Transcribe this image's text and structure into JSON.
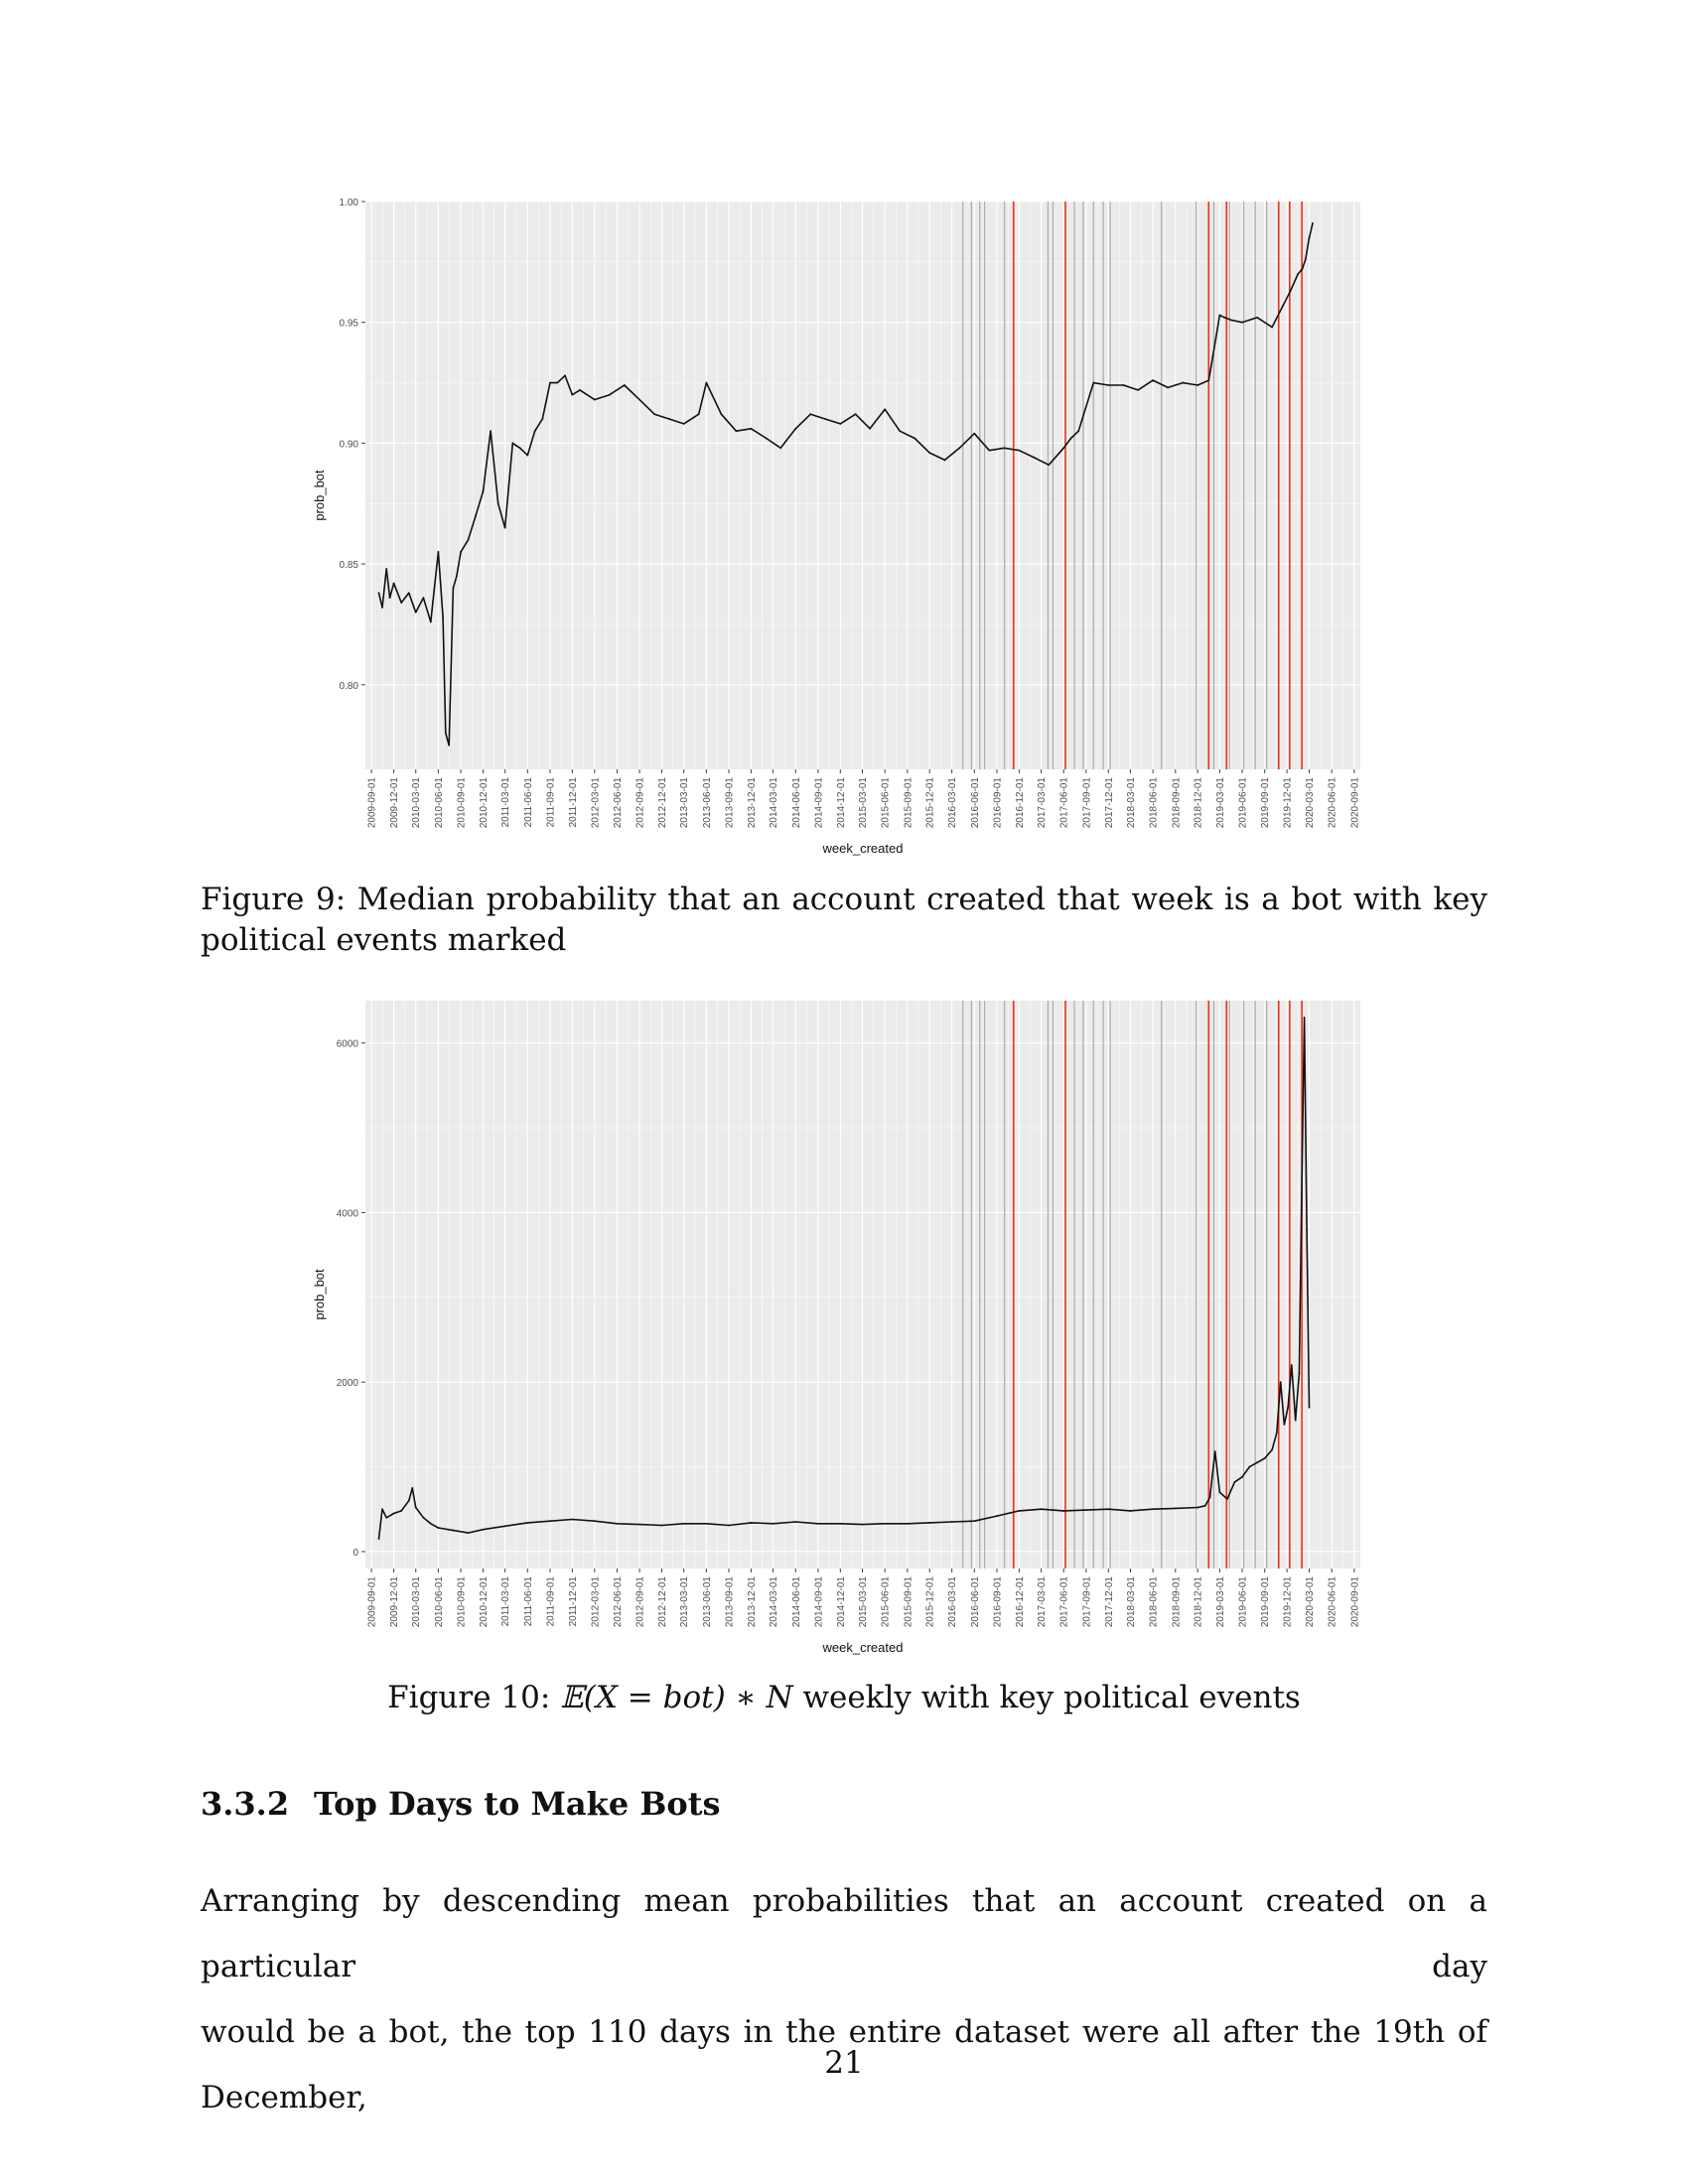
{
  "figures": [
    {
      "caption": "Figure 9: Median probability that an account created that week is a bot with key political events marked"
    },
    {
      "caption_prefix": "Figure 10: ",
      "caption_math": "𝔼(X = bot) ∗ N",
      "caption_suffix": " weekly with key political events"
    }
  ],
  "section": {
    "number": "3.3.2",
    "title": "Top Days to Make Bots"
  },
  "paragraph_lines": [
    "Arranging by descending mean probabilities that an account created on a particular day",
    "would be a bot, the top 110 days in the entire dataset were all after the 19th of December,"
  ],
  "page_number": "21",
  "colors": {
    "panel": "#ebebeb",
    "grid": "#ffffff",
    "line": "#111111",
    "event_red": "#e8311e",
    "event_gray": "#9a9a9a"
  },
  "chart_data": [
    {
      "type": "line",
      "title": "",
      "xlabel": "week_created",
      "ylabel": "prob_bot",
      "ylim": [
        0.765,
        1.0
      ],
      "yticks": [
        "0.80",
        "0.85",
        "0.90",
        "0.95",
        "1.00"
      ],
      "xticks": [
        "2009-09-01",
        "2009-12-01",
        "2010-03-01",
        "2010-06-01",
        "2010-09-01",
        "2010-12-01",
        "2011-03-01",
        "2011-06-01",
        "2011-09-01",
        "2011-12-01",
        "2012-03-01",
        "2012-06-01",
        "2012-09-01",
        "2012-12-01",
        "2013-03-01",
        "2013-06-01",
        "2013-09-01",
        "2013-12-01",
        "2014-03-01",
        "2014-06-01",
        "2014-09-01",
        "2014-12-01",
        "2015-03-01",
        "2015-06-01",
        "2015-09-01",
        "2015-12-01",
        "2016-03-01",
        "2016-06-01",
        "2016-09-01",
        "2016-12-01",
        "2017-03-01",
        "2017-06-01",
        "2017-09-01",
        "2017-12-01",
        "2018-03-01",
        "2018-06-01",
        "2018-09-01",
        "2018-12-01",
        "2019-03-01",
        "2019-06-01",
        "2019-09-01",
        "2019-12-01",
        "2020-03-01",
        "2020-06-01",
        "2020-09-01"
      ],
      "grid": true,
      "red_event_lines": [
        "2016-11-08",
        "2017-06-08",
        "2019-01-15",
        "2019-03-29",
        "2019-10-28",
        "2019-12-12",
        "2020-01-31"
      ],
      "gray_event_lines": [
        "2016-04-15",
        "2016-05-20",
        "2016-06-23",
        "2016-07-13",
        "2016-10-02",
        "2017-03-29",
        "2017-04-18",
        "2017-07-15",
        "2017-08-20",
        "2017-10-01",
        "2017-11-10",
        "2017-12-08",
        "2018-07-06",
        "2018-11-25",
        "2019-02-05",
        "2019-04-10",
        "2019-06-07",
        "2019-07-24",
        "2019-09-09"
      ],
      "series": [
        {
          "x": [
            "2009-10-01",
            "2009-10-15",
            "2009-11-01",
            "2009-11-15",
            "2009-12-01",
            "2010-01-01",
            "2010-02-01",
            "2010-03-01",
            "2010-04-01",
            "2010-05-01",
            "2010-06-01",
            "2010-06-20",
            "2010-07-01",
            "2010-07-15",
            "2010-08-01",
            "2010-08-15",
            "2010-09-01",
            "2010-10-01",
            "2010-11-01",
            "2010-12-01",
            "2011-01-01",
            "2011-02-01",
            "2011-03-01",
            "2011-04-01",
            "2011-05-01",
            "2011-06-01",
            "2011-07-01",
            "2011-08-01",
            "2011-09-01",
            "2011-10-01",
            "2011-11-01",
            "2011-12-01",
            "2012-01-01",
            "2012-03-01",
            "2012-05-01",
            "2012-07-01",
            "2012-09-01",
            "2012-11-01",
            "2013-01-01",
            "2013-03-01",
            "2013-05-01",
            "2013-06-01",
            "2013-08-01",
            "2013-10-01",
            "2013-12-01",
            "2014-02-01",
            "2014-04-01",
            "2014-06-01",
            "2014-08-01",
            "2014-10-01",
            "2014-12-01",
            "2015-02-01",
            "2015-04-01",
            "2015-06-01",
            "2015-08-01",
            "2015-10-01",
            "2015-12-01",
            "2016-02-01",
            "2016-04-01",
            "2016-06-01",
            "2016-08-01",
            "2016-10-01",
            "2016-12-01",
            "2017-02-01",
            "2017-04-01",
            "2017-06-01",
            "2017-07-01",
            "2017-08-01",
            "2017-10-01",
            "2017-12-01",
            "2018-02-01",
            "2018-04-01",
            "2018-06-01",
            "2018-08-01",
            "2018-10-01",
            "2018-12-01",
            "2019-01-15",
            "2019-02-01",
            "2019-03-01",
            "2019-03-20",
            "2019-04-15",
            "2019-06-01",
            "2019-08-01",
            "2019-10-01",
            "2019-11-15",
            "2019-12-15",
            "2020-01-15",
            "2020-02-01",
            "2020-02-15",
            "2020-03-01",
            "2020-03-15"
          ],
          "values": [
            0.838,
            0.832,
            0.848,
            0.836,
            0.842,
            0.834,
            0.838,
            0.83,
            0.836,
            0.826,
            0.855,
            0.828,
            0.78,
            0.775,
            0.84,
            0.845,
            0.855,
            0.86,
            0.87,
            0.88,
            0.905,
            0.875,
            0.865,
            0.9,
            0.898,
            0.895,
            0.905,
            0.91,
            0.925,
            0.925,
            0.928,
            0.92,
            0.922,
            0.918,
            0.92,
            0.924,
            0.918,
            0.912,
            0.91,
            0.908,
            0.912,
            0.925,
            0.912,
            0.905,
            0.906,
            0.902,
            0.898,
            0.906,
            0.912,
            0.91,
            0.908,
            0.912,
            0.906,
            0.914,
            0.905,
            0.902,
            0.896,
            0.893,
            0.898,
            0.904,
            0.897,
            0.898,
            0.897,
            0.894,
            0.891,
            0.898,
            0.902,
            0.905,
            0.925,
            0.924,
            0.924,
            0.922,
            0.926,
            0.923,
            0.925,
            0.924,
            0.926,
            0.936,
            0.953,
            0.952,
            0.951,
            0.95,
            0.952,
            0.948,
            0.957,
            0.963,
            0.97,
            0.972,
            0.976,
            0.985,
            0.991
          ]
        }
      ]
    },
    {
      "type": "line",
      "title": "",
      "xlabel": "week_created",
      "ylabel": "prob_bot",
      "ylim": [
        -200,
        6500
      ],
      "yticks": [
        "0",
        "2000",
        "4000",
        "6000"
      ],
      "xticks": [
        "2009-09-01",
        "2009-12-01",
        "2010-03-01",
        "2010-06-01",
        "2010-09-01",
        "2010-12-01",
        "2011-03-01",
        "2011-06-01",
        "2011-09-01",
        "2011-12-01",
        "2012-03-01",
        "2012-06-01",
        "2012-09-01",
        "2012-12-01",
        "2013-03-01",
        "2013-06-01",
        "2013-09-01",
        "2013-12-01",
        "2014-03-01",
        "2014-06-01",
        "2014-09-01",
        "2014-12-01",
        "2015-03-01",
        "2015-06-01",
        "2015-09-01",
        "2015-12-01",
        "2016-03-01",
        "2016-06-01",
        "2016-09-01",
        "2016-12-01",
        "2017-03-01",
        "2017-06-01",
        "2017-09-01",
        "2017-12-01",
        "2018-03-01",
        "2018-06-01",
        "2018-09-01",
        "2018-12-01",
        "2019-03-01",
        "2019-06-01",
        "2019-09-01",
        "2019-12-01",
        "2020-03-01",
        "2020-06-01",
        "2020-09-01"
      ],
      "grid": true,
      "red_event_lines": [
        "2016-11-08",
        "2017-06-08",
        "2019-01-15",
        "2019-03-29",
        "2019-10-28",
        "2019-12-12",
        "2020-01-31"
      ],
      "gray_event_lines": [
        "2016-04-15",
        "2016-05-20",
        "2016-06-23",
        "2016-07-13",
        "2016-10-02",
        "2017-03-29",
        "2017-04-18",
        "2017-07-15",
        "2017-08-20",
        "2017-10-01",
        "2017-11-10",
        "2017-12-08",
        "2018-07-06",
        "2018-11-25",
        "2019-02-05",
        "2019-04-10",
        "2019-06-07",
        "2019-07-24",
        "2019-09-09"
      ],
      "series": [
        {
          "x": [
            "2009-10-01",
            "2009-10-15",
            "2009-11-01",
            "2009-12-01",
            "2010-01-01",
            "2010-02-01",
            "2010-02-15",
            "2010-03-01",
            "2010-04-01",
            "2010-05-01",
            "2010-06-01",
            "2010-08-01",
            "2010-10-01",
            "2010-12-01",
            "2011-03-01",
            "2011-06-01",
            "2011-09-01",
            "2011-12-01",
            "2012-03-01",
            "2012-06-01",
            "2012-09-01",
            "2012-12-01",
            "2013-03-01",
            "2013-06-01",
            "2013-09-01",
            "2013-12-01",
            "2014-03-01",
            "2014-06-01",
            "2014-09-01",
            "2014-12-01",
            "2015-03-01",
            "2015-06-01",
            "2015-09-01",
            "2015-12-01",
            "2016-03-01",
            "2016-06-01",
            "2016-09-01",
            "2016-12-01",
            "2017-03-01",
            "2017-06-01",
            "2017-09-01",
            "2017-12-01",
            "2018-03-01",
            "2018-06-01",
            "2018-09-01",
            "2018-12-01",
            "2019-01-01",
            "2019-01-20",
            "2019-02-10",
            "2019-03-01",
            "2019-04-01",
            "2019-05-01",
            "2019-06-01",
            "2019-07-01",
            "2019-08-01",
            "2019-09-01",
            "2019-10-01",
            "2019-10-20",
            "2019-11-05",
            "2019-11-20",
            "2019-12-05",
            "2019-12-20",
            "2020-01-05",
            "2020-01-20",
            "2020-02-01",
            "2020-02-10",
            "2020-02-20",
            "2020-03-01"
          ],
          "values": [
            150,
            500,
            400,
            450,
            480,
            600,
            750,
            520,
            400,
            330,
            280,
            250,
            220,
            260,
            300,
            340,
            360,
            380,
            360,
            330,
            320,
            310,
            330,
            330,
            310,
            340,
            330,
            350,
            330,
            330,
            320,
            330,
            330,
            340,
            350,
            360,
            420,
            480,
            500,
            480,
            490,
            500,
            480,
            500,
            510,
            520,
            540,
            640,
            1180,
            700,
            620,
            820,
            880,
            1000,
            1050,
            1100,
            1200,
            1400,
            2000,
            1500,
            1700,
            2200,
            1550,
            2100,
            4600,
            6300,
            3800,
            1700
          ]
        }
      ]
    }
  ]
}
